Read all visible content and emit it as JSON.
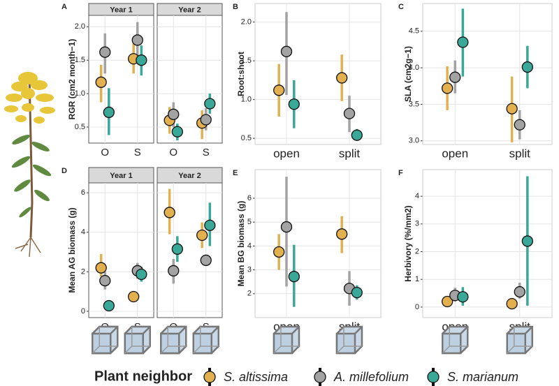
{
  "legend": {
    "title": "Plant neighbor",
    "series": [
      {
        "name": "S. altissima",
        "color": "#e2b04f"
      },
      {
        "name": "A. millefolium",
        "color": "#a3a3a3"
      },
      {
        "name": "S. marianum",
        "color": "#3aa898"
      }
    ]
  },
  "chart_data": [
    {
      "type": "point",
      "label": "A",
      "ylabel": "RGR (cm2 month−1)",
      "categories": [
        "O",
        "S"
      ],
      "ylim": [
        0.26,
        2.17
      ],
      "yticks": [
        0.5,
        {
          "value": 1,
          "label": "1.0"
        },
        1.5,
        {
          "value": 2,
          "label": "2.0"
        }
      ],
      "grid": true,
      "facets": [
        {
          "title": "Year 1",
          "series": [
            {
              "values": [
                1.17,
                1.52
              ],
              "lower": [
                0.87,
                1.3
              ],
              "upper": [
                1.43,
                1.75
              ]
            },
            {
              "values": [
                1.62,
                1.8
              ],
              "lower": [
                1.3,
                1.55
              ],
              "upper": [
                1.9,
                2.07
              ]
            },
            {
              "values": [
                0.72,
                1.5
              ],
              "lower": [
                0.38,
                1.27
              ],
              "upper": [
                1.08,
                1.72
              ]
            }
          ]
        },
        {
          "title": "Year 2",
          "series": [
            {
              "values": [
                0.6,
                0.56
              ],
              "lower": [
                0.4,
                0.32
              ],
              "upper": [
                0.8,
                0.75
              ]
            },
            {
              "values": [
                0.69,
                0.61
              ],
              "lower": [
                0.5,
                0.45
              ],
              "upper": [
                0.87,
                0.78
              ]
            },
            {
              "values": [
                0.43,
                0.85
              ],
              "lower": [
                0.3,
                0.7
              ],
              "upper": [
                0.55,
                1.0
              ]
            }
          ]
        }
      ]
    },
    {
      "type": "point",
      "label": "B",
      "ylabel": "Root:shoot",
      "categories": [
        "open",
        "split"
      ],
      "ylim": [
        0.42,
        2.24
      ],
      "yticks": [
        0.5,
        {
          "value": 1,
          "label": "1.0"
        },
        1.5,
        {
          "value": 2,
          "label": "2.0"
        }
      ],
      "grid": true,
      "series": [
        {
          "values": [
            1.12,
            1.28
          ],
          "lower": [
            0.78,
            0.98
          ],
          "upper": [
            1.46,
            1.58
          ]
        },
        {
          "values": [
            1.62,
            0.82
          ],
          "lower": [
            1.06,
            0.58
          ],
          "upper": [
            2.13,
            1.05
          ]
        },
        {
          "values": [
            0.94,
            0.54
          ],
          "lower": [
            0.63,
            0.47
          ],
          "upper": [
            1.25,
            0.62
          ]
        }
      ]
    },
    {
      "type": "point",
      "label": "C",
      "ylabel": "SLA (cm2g−1)",
      "categories": [
        "open",
        "split"
      ],
      "ylim": [
        2.95,
        4.88
      ],
      "yticks": [
        {
          "value": 3,
          "label": "3.0"
        },
        3.5,
        {
          "value": 4,
          "label": "4.0"
        },
        4.5
      ],
      "grid": true,
      "series": [
        {
          "values": [
            3.72,
            3.44
          ],
          "lower": [
            3.42,
            2.98
          ],
          "upper": [
            4.02,
            3.88
          ]
        },
        {
          "values": [
            3.87,
            3.22
          ],
          "lower": [
            3.65,
            3.02
          ],
          "upper": [
            4.1,
            3.42
          ]
        },
        {
          "values": [
            4.35,
            4.01
          ],
          "lower": [
            3.88,
            3.72
          ],
          "upper": [
            4.81,
            4.3
          ]
        }
      ]
    },
    {
      "type": "point",
      "label": "D",
      "ylabel": "Mean AG biomass (g)",
      "categories": [
        "O",
        "S"
      ],
      "ylim": [
        -0.32,
        6.5
      ],
      "yticks": [
        0,
        2,
        4,
        6
      ],
      "grid": true,
      "facets": [
        {
          "title": "Year 1",
          "series": [
            {
              "values": [
                2.2,
                0.74
              ],
              "lower": [
                1.75,
                0.7
              ],
              "upper": [
                2.9,
                0.8
              ]
            },
            {
              "values": [
                1.55,
                2.05
              ],
              "lower": [
                1.1,
                1.65
              ],
              "upper": [
                2.0,
                2.45
              ]
            },
            {
              "values": [
                0.28,
                1.87
              ],
              "lower": [
                0.25,
                1.5
              ],
              "upper": [
                0.35,
                2.25
              ]
            }
          ]
        },
        {
          "title": "Year 2",
          "series": [
            {
              "values": [
                5.0,
                3.85
              ],
              "lower": [
                3.9,
                3.2
              ],
              "upper": [
                6.2,
                4.5
              ]
            },
            {
              "values": [
                2.05,
                2.58
              ],
              "lower": [
                1.4,
                2.4
              ],
              "upper": [
                2.65,
                2.8
              ]
            },
            {
              "values": [
                3.15,
                4.35
              ],
              "lower": [
                2.5,
                3.3
              ],
              "upper": [
                3.8,
                5.5
              ]
            }
          ]
        }
      ]
    },
    {
      "type": "point",
      "label": "E",
      "ylabel": "Mean BG biomass (g)",
      "categories": [
        "open",
        "split"
      ],
      "ylim": [
        1.0,
        7.2
      ],
      "yticks": [
        2,
        3,
        4,
        5,
        6
      ],
      "grid": true,
      "series": [
        {
          "values": [
            3.75,
            4.5
          ],
          "lower": [
            3.0,
            3.7
          ],
          "upper": [
            4.5,
            5.25
          ]
        },
        {
          "values": [
            4.8,
            2.22
          ],
          "lower": [
            2.3,
            1.5
          ],
          "upper": [
            6.9,
            2.95
          ]
        },
        {
          "values": [
            2.72,
            2.05
          ],
          "lower": [
            1.45,
            1.75
          ],
          "upper": [
            4.05,
            2.35
          ]
        }
      ]
    },
    {
      "type": "point",
      "label": "F",
      "ylabel": "Herbivory (%/mm2)",
      "categories": [
        "open",
        "split"
      ],
      "ylim": [
        -0.38,
        4.96
      ],
      "yticks": [
        0,
        1,
        2,
        3,
        4
      ],
      "grid": true,
      "series": [
        {
          "values": [
            0.2,
            0.12
          ],
          "lower": [
            0.1,
            0.05
          ],
          "upper": [
            0.3,
            0.2
          ]
        },
        {
          "values": [
            0.42,
            0.55
          ],
          "lower": [
            0.2,
            0.3
          ],
          "upper": [
            0.7,
            0.88
          ]
        },
        {
          "values": [
            0.37,
            2.38
          ],
          "lower": [
            0.05,
            0.05
          ],
          "upper": [
            0.72,
            4.72
          ]
        }
      ]
    }
  ]
}
